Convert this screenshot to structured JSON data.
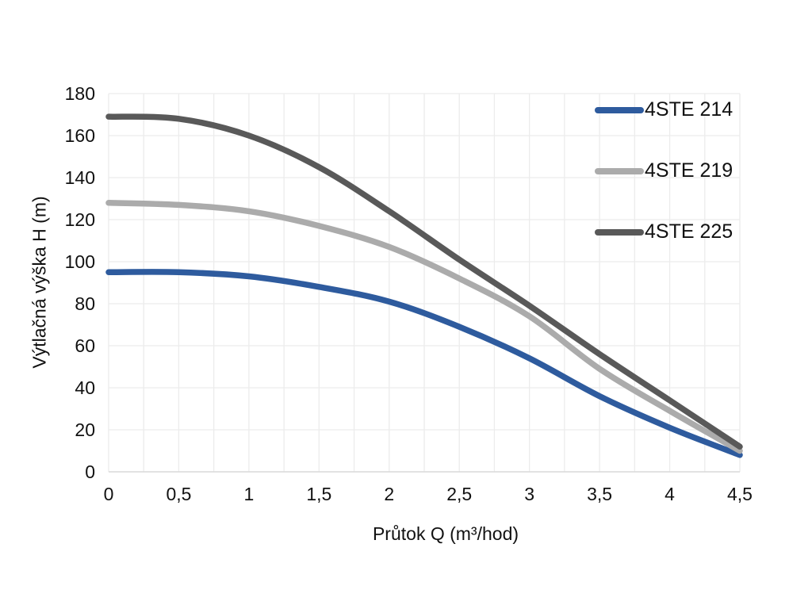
{
  "chart_data": {
    "type": "line",
    "title": "",
    "xlabel": "Průtok Q (m³/hod)",
    "ylabel": "Výtlačná výška H (m)",
    "x": [
      0,
      0.5,
      1,
      1.5,
      2,
      2.5,
      3,
      3.5,
      4,
      4.5
    ],
    "x_tick_labels": [
      "0",
      "0,5",
      "1",
      "1,5",
      "2",
      "2,5",
      "3",
      "3,5",
      "4",
      "4,5"
    ],
    "y_ticks": [
      0,
      20,
      40,
      60,
      80,
      100,
      120,
      140,
      160,
      180
    ],
    "y_tick_labels": [
      "0",
      "20",
      "40",
      "60",
      "80",
      "100",
      "120",
      "140",
      "160",
      "180"
    ],
    "xlim": [
      0,
      4.5
    ],
    "ylim": [
      0,
      180
    ],
    "grid": true,
    "x_gridline_step": 0.25,
    "y_gridline_step": 20,
    "gridline_color": "#ececec",
    "axis_line_color": "#d9d9d9",
    "legend_position": "top-right-inside",
    "series": [
      {
        "name": "4STE 214",
        "color": "#2e5b9e",
        "values": [
          95,
          95,
          93,
          88,
          81,
          69,
          54,
          36,
          21,
          8
        ]
      },
      {
        "name": "4STE 219",
        "color": "#ababab",
        "values": [
          128,
          127,
          124,
          117,
          107,
          92,
          74,
          49,
          29,
          10
        ]
      },
      {
        "name": "4STE 225",
        "color": "#595959",
        "values": [
          169,
          168,
          160,
          145,
          124,
          101,
          79,
          56,
          34,
          12
        ]
      }
    ]
  }
}
